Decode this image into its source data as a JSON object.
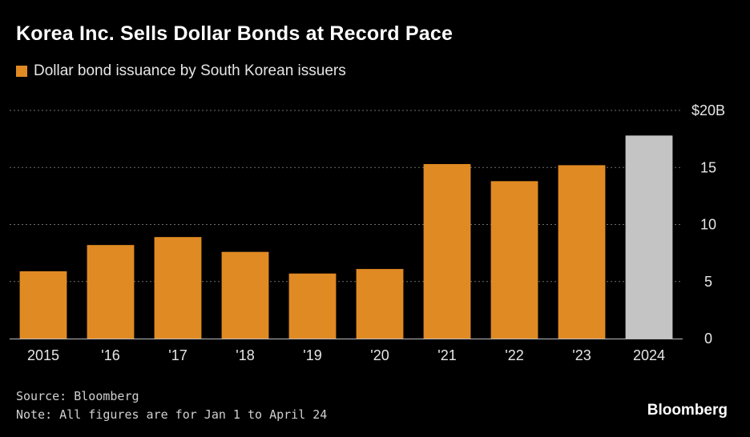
{
  "chart_data": {
    "type": "bar",
    "title": "Korea Inc. Sells Dollar Bonds at Record Pace",
    "series": [
      {
        "name": "Dollar bond issuance by South Korean issuers",
        "color": "#e08a24",
        "values": [
          5.9,
          8.2,
          8.9,
          7.6,
          5.7,
          6.1,
          15.3,
          13.8,
          15.2,
          17.8
        ]
      }
    ],
    "categories": [
      "2015",
      "'16",
      "'17",
      "'18",
      "'19",
      "'20",
      "'21",
      "'22",
      "'23",
      "2024"
    ],
    "highlight_color": "#c4c4c4",
    "highlight_index": 9,
    "ylim": [
      0,
      20
    ],
    "yticks": [
      0,
      5,
      10,
      15,
      20
    ],
    "ytick_labels": [
      "0",
      "5",
      "10",
      "15",
      "$20B"
    ],
    "grid": true,
    "axis_position": "right",
    "xlabel": "",
    "ylabel": ""
  },
  "footer": {
    "source": "Source: Bloomberg",
    "note": "Note: All figures are for Jan 1 to April 24",
    "brand": "Bloomberg"
  }
}
